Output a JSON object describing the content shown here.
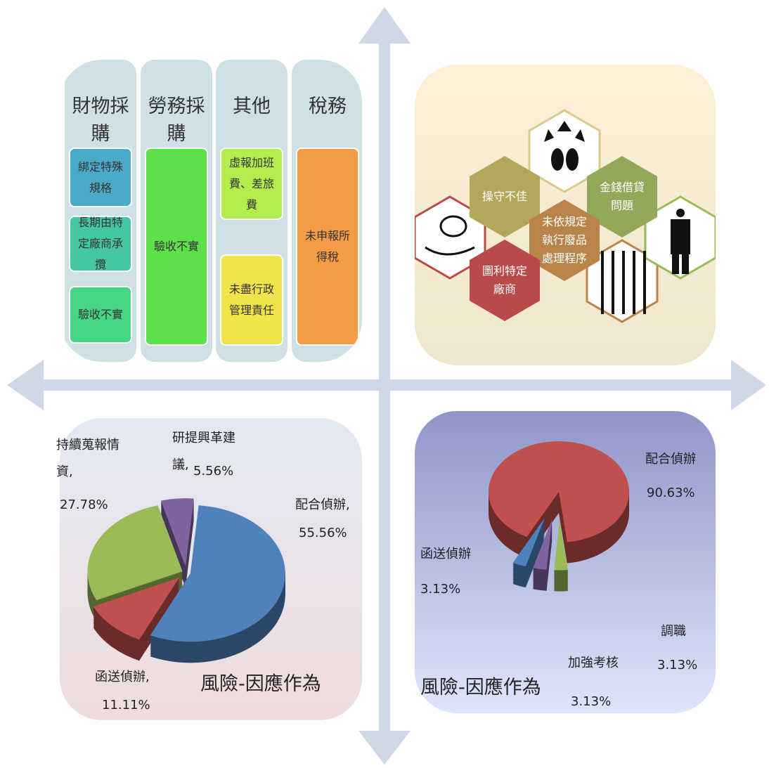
{
  "procurement_table": {
    "columns": [
      {
        "header": "財物採購",
        "items": [
          "綁定特殊規格",
          "長期由特定廠商承攬",
          "驗收不實"
        ]
      },
      {
        "header": "勞務採購",
        "items": [
          "驗收不實"
        ]
      },
      {
        "header": "其他",
        "items": [
          "虛報加班費、差旅費",
          "未盡行政管理責任"
        ]
      },
      {
        "header": "稅務",
        "items": [
          "未申報所得稅"
        ]
      }
    ]
  },
  "hexagons": {
    "labels": [
      "操守不佳",
      "金錢借貸問題",
      "未依規定執行廢品處理程序",
      "圖利特定廠商"
    ]
  },
  "chart_data": [
    {
      "type": "pie",
      "title": "風險-因應作為",
      "categories": [
        "配合偵辦,",
        "函送偵辦,",
        "持續蒐報情資,",
        "研提興革建議,"
      ],
      "values": [
        55.56,
        11.11,
        27.78,
        5.56
      ],
      "value_labels": [
        "55.56%",
        "11.11%",
        "27.78%",
        "5.56%"
      ],
      "colors": [
        "#4f81bd",
        "#c0504d",
        "#9bbb59",
        "#8064a2"
      ]
    },
    {
      "type": "pie",
      "title": "風險-因應作為",
      "categories": [
        "配合偵辦",
        "調職",
        "加強考核",
        "函送偵辦"
      ],
      "values": [
        90.63,
        3.13,
        3.13,
        3.13
      ],
      "value_labels": [
        "90.63%",
        "3.13%",
        "3.13%",
        "3.13%"
      ],
      "colors": [
        "#c0504d",
        "#9bbb59",
        "#8064a2",
        "#4f81bd"
      ]
    }
  ]
}
